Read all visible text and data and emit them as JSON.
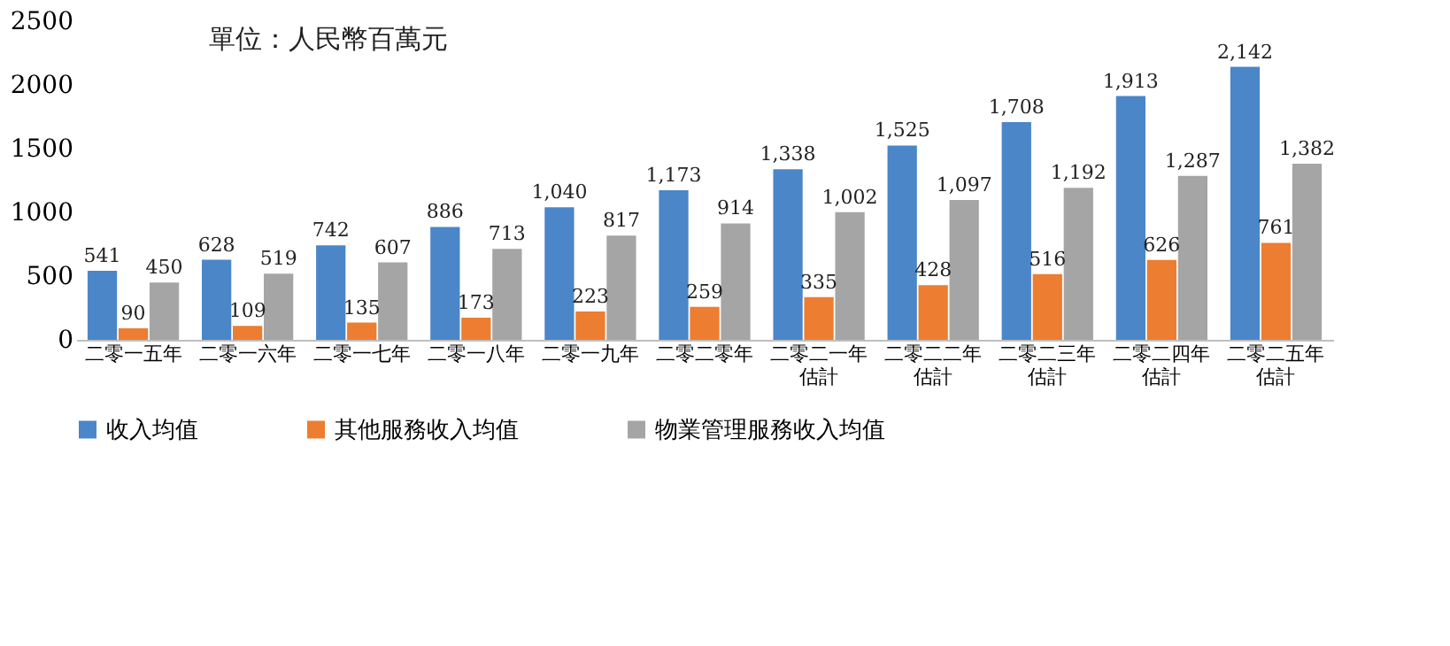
{
  "chart_data": {
    "type": "bar",
    "categories": [
      "二零一五年",
      "二零一六年",
      "二零一七年",
      "二零一八年",
      "二零一九年",
      "二零二零年",
      "二零二一年估計",
      "二零二二年估計",
      "二零二三年估計",
      "二零二四年估計",
      "二零二五年估計"
    ],
    "series": [
      {
        "name": "收入均值",
        "color": "#4a86c8",
        "values": [
          541,
          628,
          742,
          886,
          1040,
          1173,
          1338,
          1525,
          1708,
          1913,
          2142
        ],
        "value_labels": [
          "541",
          "628",
          "742",
          "886",
          "1,040",
          "1,173",
          "1,338",
          "1,525",
          "1,708",
          "1,913",
          "2,142"
        ]
      },
      {
        "name": "其他服務收入均值",
        "color": "#ed7d31",
        "values": [
          90,
          109,
          135,
          173,
          223,
          259,
          335,
          428,
          516,
          626,
          761
        ],
        "value_labels": [
          "90",
          "109",
          "135",
          "173",
          "223",
          "259",
          "335",
          "428",
          "516",
          "626",
          "761"
        ]
      },
      {
        "name": "物業管理服務收入均值",
        "color": "#a5a5a5",
        "values": [
          450,
          519,
          607,
          713,
          817,
          914,
          1002,
          1097,
          1192,
          1287,
          1382
        ],
        "value_labels": [
          "450",
          "519",
          "607",
          "713",
          "817",
          "914",
          "1,002",
          "1,097",
          "1,192",
          "1,287",
          "1,382"
        ]
      }
    ],
    "ylim": [
      0,
      2500
    ],
    "yticks": [
      0,
      500,
      1000,
      1500,
      2000,
      2500
    ],
    "grid": false,
    "legend": "bottom",
    "annotations": [
      "單位：人民幣百萬元"
    ]
  }
}
